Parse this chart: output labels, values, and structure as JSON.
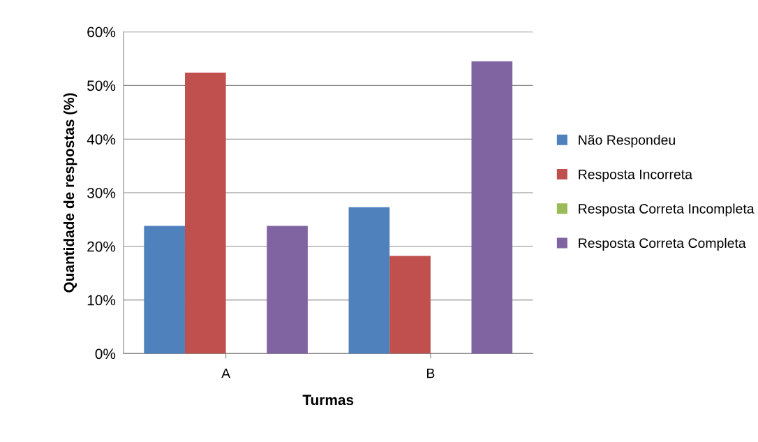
{
  "chart_data": {
    "type": "bar",
    "xlabel": "Turmas",
    "ylabel": "Quantidade de respostas (%)",
    "categories": [
      "A",
      "B"
    ],
    "series": [
      {
        "name": "Não Respondeu",
        "color": "#4f81bd",
        "values": [
          23.8,
          27.3
        ]
      },
      {
        "name": "Resposta Incorreta",
        "color": "#c0504d",
        "values": [
          52.4,
          18.2
        ]
      },
      {
        "name": "Resposta Correta Incompleta",
        "color": "#9bbb59",
        "values": [
          0,
          0
        ]
      },
      {
        "name": "Resposta Correta Completa",
        "color": "#8064a2",
        "values": [
          23.8,
          54.5
        ]
      }
    ],
    "ylim": [
      0,
      60
    ],
    "yticks": [
      {
        "value": 0,
        "label": "0%"
      },
      {
        "value": 10,
        "label": "10%"
      },
      {
        "value": 20,
        "label": "20%"
      },
      {
        "value": 30,
        "label": "30%"
      },
      {
        "value": 40,
        "label": "40%"
      },
      {
        "value": 50,
        "label": "50%"
      },
      {
        "value": 60,
        "label": "60%"
      }
    ],
    "grid": "y",
    "legend": "right"
  }
}
